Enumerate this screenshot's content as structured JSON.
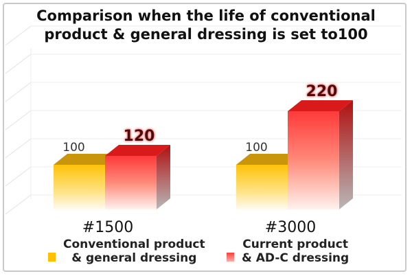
{
  "chart_data": {
    "type": "bar",
    "title_lines": [
      "Comparison when the life of conventional",
      "product & general dressing is set to100"
    ],
    "categories": [
      "#1500",
      "#3000"
    ],
    "series": [
      {
        "name_lines": [
          "Conventional product",
          "& general dressing"
        ],
        "values": [
          100,
          100
        ],
        "color": "#ffc000"
      },
      {
        "name_lines": [
          "Current product",
          "& AD-C dressing"
        ],
        "values": [
          120,
          220
        ],
        "color": "#ff3b3b"
      }
    ],
    "ylim": [
      0,
      250
    ],
    "grid": true,
    "legend_position": "bottom"
  }
}
